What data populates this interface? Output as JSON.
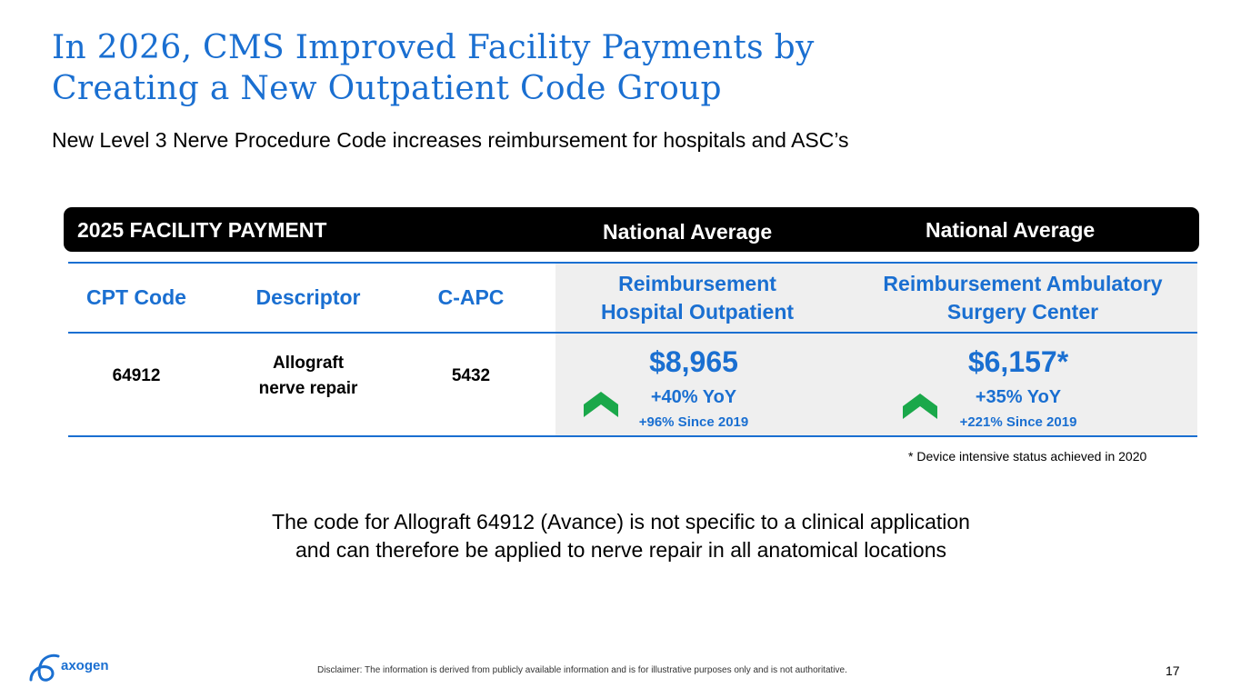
{
  "title": {
    "line1": "In 2026, CMS Improved Facility Payments by",
    "line2": "Creating a New Outpatient Code Group"
  },
  "subtitle": "New Level 3 Nerve Procedure Code increases reimbursement for hospitals and ASC’s",
  "header_bar": {
    "left": "2025 FACILITY PAYMENT",
    "mid": "National Average",
    "right": "National Average"
  },
  "columns": {
    "cpt": "CPT Code",
    "descriptor": "Descriptor",
    "capc": "C-APC",
    "hospital_line1": "Reimbursement",
    "hospital_line2": "Hospital Outpatient",
    "asc_line1": "Reimbursement Ambulatory",
    "asc_line2": "Surgery Center"
  },
  "row": {
    "cpt": "64912",
    "descriptor_line1": "Allograft",
    "descriptor_line2": "nerve repair",
    "capc": "5432",
    "hospital": {
      "amount": "$8,965",
      "yoy": "+40% YoY",
      "since": "+96% Since 2019"
    },
    "asc": {
      "amount": "$6,157*",
      "yoy": "+35% YoY",
      "since": "+221% Since 2019"
    }
  },
  "footnote": "* Device intensive status achieved in 2020",
  "body": {
    "line1": "The code for Allograft 64912 (Avance) is not specific to a clinical application",
    "line2": "and can therefore be applied to nerve repair in all anatomical locations"
  },
  "logo_text": "axogen",
  "disclaimer": "Disclaimer: The information is derived from publicly available information and is for illustrative purposes only and is not authoritative.",
  "page_number": "17",
  "colors": {
    "accent_blue": "#1a6fd1",
    "arrow_green": "#1aa84a",
    "header_black": "#000000",
    "shade_gray": "#efefef"
  },
  "icons": {
    "increase": "chevron-up-icon",
    "logo": "axogen-logo-icon"
  }
}
